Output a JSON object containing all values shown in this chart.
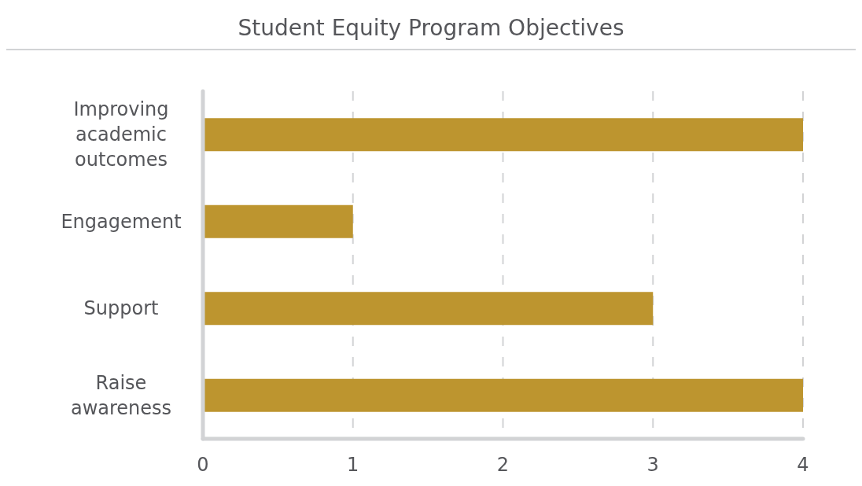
{
  "chart_data": {
    "type": "bar",
    "title": "Student Equity Program Objectives",
    "orientation": "horizontal",
    "categories": [
      "Improving academic outcomes",
      "Engagement",
      "Support",
      "Raise awareness"
    ],
    "values": [
      4,
      1,
      3,
      4
    ],
    "color": "#bd952f",
    "xlim": [
      0,
      4
    ],
    "xticks": [
      0,
      1,
      2,
      3,
      4
    ],
    "grid": "x"
  }
}
